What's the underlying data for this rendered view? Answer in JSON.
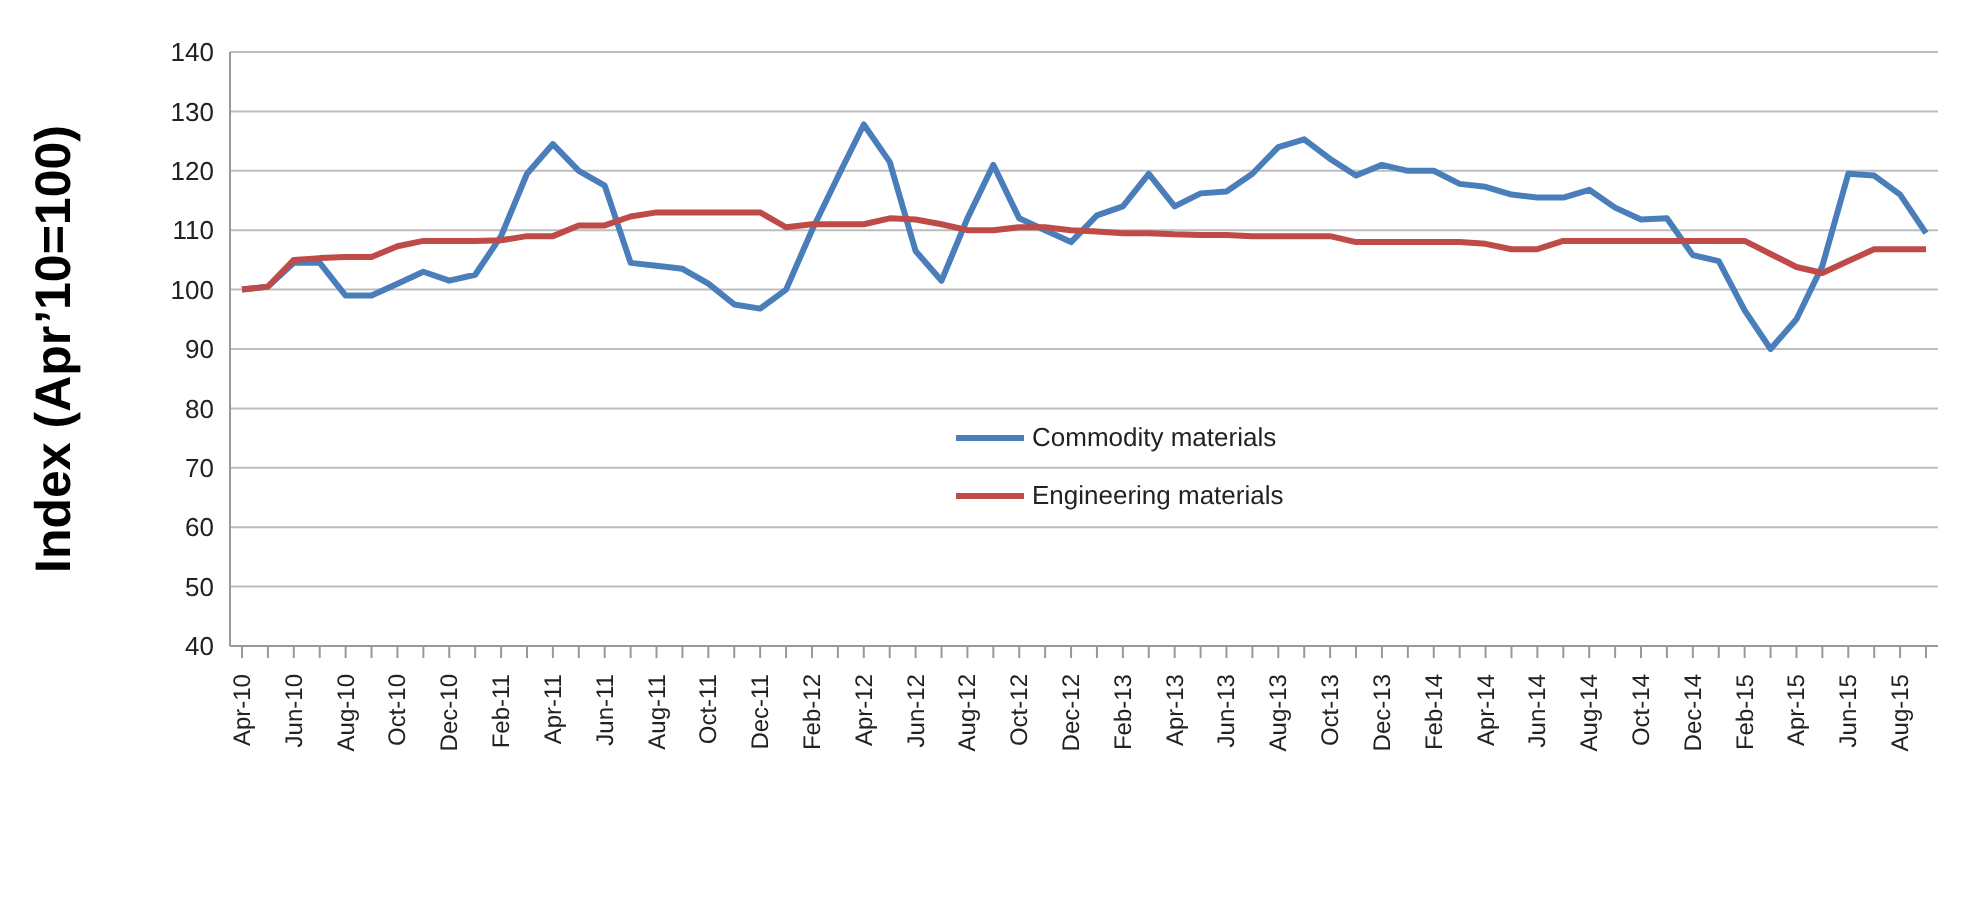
{
  "chart_data": {
    "type": "line",
    "ylabel": "Index (Apr’10=100)",
    "categories": [
      "Apr-10",
      null,
      "Jun-10",
      null,
      "Aug-10",
      null,
      "Oct-10",
      null,
      "Dec-10",
      null,
      "Feb-11",
      null,
      "Apr-11",
      null,
      "Jun-11",
      null,
      "Aug-11",
      null,
      "Oct-11",
      null,
      "Dec-11",
      null,
      "Feb-12",
      null,
      "Apr-12",
      null,
      "Jun-12",
      null,
      "Aug-12",
      null,
      "Oct-12",
      null,
      "Dec-12",
      null,
      "Feb-13",
      null,
      "Apr-13",
      null,
      "Jun-13",
      null,
      "Aug-13",
      null,
      "Oct-13",
      null,
      "Dec-13",
      null,
      "Feb-14",
      null,
      "Apr-14",
      null,
      "Jun-14",
      null,
      "Aug-14",
      null,
      "Oct-14",
      null,
      "Dec-14",
      null,
      "Feb-15",
      null,
      "Apr-15",
      null,
      "Jun-15",
      null,
      "Aug-15",
      null
    ],
    "series": [
      {
        "name": "Commodity materials",
        "color": "#4a7ebb",
        "values": [
          100,
          100.5,
          104.5,
          104.5,
          99,
          99,
          101,
          103,
          101.5,
          102.5,
          109,
          119.5,
          124.5,
          120,
          117.5,
          104.5,
          104,
          103.5,
          101,
          97.5,
          96.8,
          100,
          110,
          119,
          127.8,
          121.5,
          106.5,
          101.5,
          112,
          121,
          112,
          110,
          108,
          112.5,
          114,
          119.5,
          114,
          116.2,
          116.5,
          119.5,
          124,
          125.3,
          122,
          119.2,
          121,
          120,
          120,
          117.8,
          117.3,
          116,
          115.5,
          115.5,
          116.8,
          113.8,
          111.8,
          112,
          105.8,
          104.8,
          96.5,
          90,
          95,
          104,
          119.5,
          119.2,
          116,
          109.5
        ]
      },
      {
        "name": "Engineering materials",
        "color": "#be4b48",
        "values": [
          100,
          100.5,
          105,
          105.3,
          105.5,
          105.5,
          107.3,
          108.2,
          108.2,
          108.2,
          108.3,
          109,
          109,
          110.8,
          110.8,
          112.3,
          113,
          113,
          113,
          113,
          113,
          110.5,
          111,
          111,
          111,
          112,
          111.8,
          111,
          110,
          110,
          110.5,
          110.5,
          110,
          109.8,
          109.5,
          109.5,
          109.3,
          109.2,
          109.2,
          109,
          109,
          109,
          109,
          108,
          108,
          108,
          108,
          108,
          107.7,
          106.8,
          106.8,
          108.2,
          108.2,
          108.2,
          108.2,
          108.2,
          108.2,
          108.2,
          108.2,
          106,
          103.8,
          102.8,
          104.8,
          106.8,
          106.8,
          106.8
        ]
      }
    ],
    "ylim": [
      40,
      140
    ],
    "yticks": [
      40,
      50,
      60,
      70,
      80,
      90,
      100,
      110,
      120,
      130,
      140
    ],
    "grid": "y",
    "legend": "center",
    "marker": "none",
    "line_style": "solid"
  }
}
